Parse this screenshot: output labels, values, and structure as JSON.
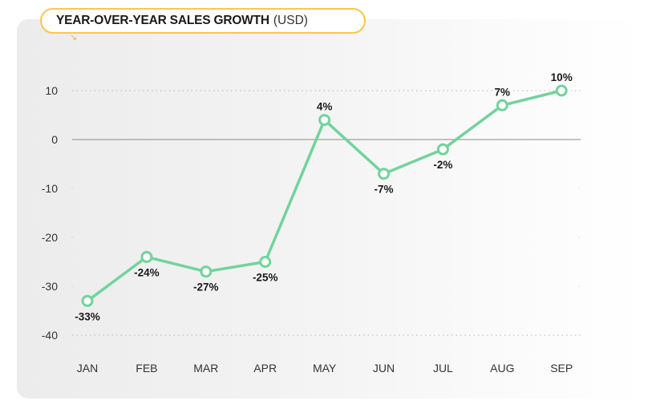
{
  "colors": {
    "line": "#72d39c",
    "title_border": "#f6c84c",
    "zero_line": "#8a8a8a",
    "grid": "#b5b5b5"
  },
  "title_arrow_icon": "↘",
  "chart_data": {
    "type": "line",
    "title": "YEAR-OVER-YEAR SALES GROWTH",
    "title_unit": "(USD)",
    "xlabel": "",
    "ylabel": "",
    "categories": [
      "JAN",
      "FEB",
      "MAR",
      "APR",
      "MAY",
      "JUN",
      "JUL",
      "AUG",
      "SEP"
    ],
    "series": [
      {
        "name": "Year-over-year sales growth",
        "values": [
          -33,
          -24,
          -27,
          -25,
          4,
          -7,
          -2,
          7,
          10
        ],
        "labels": [
          "-33%",
          "-24%",
          "-27%",
          "-25%",
          "4%",
          "-7%",
          "-2%",
          "7%",
          "10%"
        ]
      }
    ],
    "yticks": [
      10,
      0,
      -10,
      -20,
      -30,
      -40
    ],
    "ytick_labels": [
      "10",
      "0",
      "-10",
      "-20",
      "-30",
      "-40"
    ],
    "ylim": [
      -40,
      10
    ],
    "grid": "dotted at 10 and -40, solid line at 0",
    "legend": "none"
  }
}
